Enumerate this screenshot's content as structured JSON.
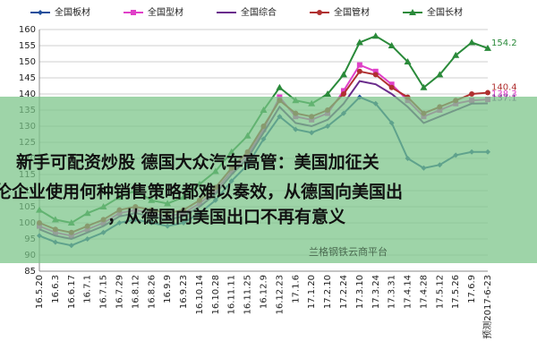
{
  "chart_data": {
    "type": "line",
    "categories": [
      "16.5.20",
      "16.6.3",
      "16.6.17",
      "16.7.1",
      "16.7.15",
      "16.7.29",
      "16.8.12",
      "16.8.26",
      "16.9.9",
      "16.9.23",
      "16.10.14",
      "16.10.28",
      "16.11.11",
      "16.11.25",
      "16.12.9",
      "16.12.23",
      "17.1.6",
      "17.1.20",
      "17.2.10",
      "17.2.24",
      "17.3.10",
      "17.3.24",
      "17.3.31",
      "17.4.14",
      "17.4.28",
      "17.5.12",
      "17.5.26",
      "17.6.9",
      "预测2017-6-23"
    ],
    "series": [
      {
        "name": "全国板材",
        "color": "#1f4e9c",
        "marker": "diamond",
        "end_label": false,
        "values": [
          96,
          94,
          93,
          95,
          97,
          100,
          101,
          100,
          99,
          100,
          103,
          107,
          113,
          118,
          126,
          133,
          129,
          128,
          130,
          134,
          139,
          137,
          131,
          120,
          117,
          118,
          121,
          122,
          122
        ]
      },
      {
        "name": "全国型材",
        "color": "#e040c8",
        "marker": "square",
        "end_label": true,
        "values": [
          99,
          97,
          96,
          98,
          100,
          103,
          104,
          103,
          102,
          103,
          106,
          110,
          116,
          121,
          129,
          139,
          133,
          132,
          134,
          141,
          149,
          147,
          143,
          138,
          133,
          135,
          137,
          138,
          138.3
        ]
      },
      {
        "name": "全国综合",
        "color": "#6a2c8c",
        "marker": "none",
        "end_label": true,
        "values": [
          98,
          96,
          95,
          97,
          99,
          102,
          103,
          102,
          101,
          102,
          105,
          109,
          115,
          120,
          128,
          136,
          131,
          130,
          132,
          137,
          144,
          143,
          140,
          136,
          131,
          133,
          135,
          137,
          137.1
        ]
      },
      {
        "name": "全国管材",
        "color": "#b03030",
        "marker": "circle",
        "end_label": true,
        "values": [
          100,
          98,
          97,
          99,
          101,
          104,
          105,
          104,
          103,
          104,
          107,
          111,
          117,
          122,
          130,
          138,
          134,
          133,
          135,
          140,
          147,
          146,
          142,
          139,
          134,
          136,
          138,
          140,
          140.4
        ]
      },
      {
        "name": "全国长材",
        "color": "#2a8a3a",
        "marker": "triangle",
        "end_label": true,
        "values": [
          104,
          101,
          100,
          103,
          105,
          108,
          110,
          107,
          106,
          108,
          112,
          116,
          122,
          127,
          135,
          142,
          138,
          137,
          140,
          146,
          156,
          158,
          155,
          150,
          142,
          146,
          152,
          156,
          154.2
        ]
      }
    ],
    "ylim": [
      85,
      160
    ],
    "yticks": [
      85,
      90,
      95,
      100,
      105,
      110,
      115,
      120,
      125,
      130,
      135,
      140,
      145,
      150,
      155,
      160
    ],
    "grid": true
  },
  "overlay": {
    "lines": [
      "新手可配资炒股 德国大众汽车高管：美国加征关",
      "伦企业使用何种销售策略都难以奏效，从德国向美国出",
      "，从德国向美国出口不再有意义"
    ],
    "watermark": "兰格钢铁云商平台"
  }
}
